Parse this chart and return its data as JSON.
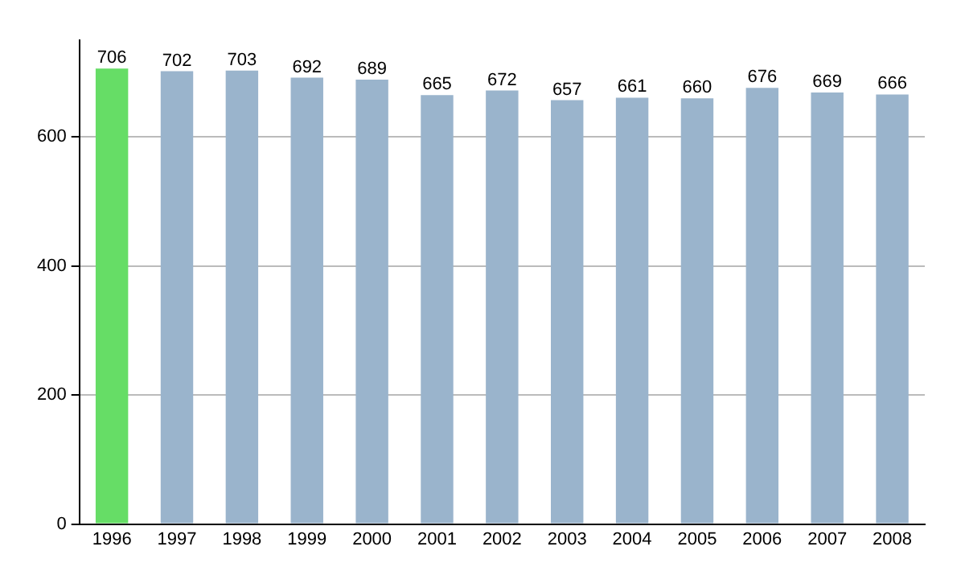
{
  "chart_data": {
    "type": "bar",
    "categories": [
      "1996",
      "1997",
      "1998",
      "1999",
      "2000",
      "2001",
      "2002",
      "2003",
      "2004",
      "2005",
      "2006",
      "2007",
      "2008"
    ],
    "values": [
      706,
      702,
      703,
      692,
      689,
      665,
      672,
      657,
      661,
      660,
      676,
      669,
      666
    ],
    "colors": [
      "#66dd66",
      "#9ab4cc",
      "#9ab4cc",
      "#9ab4cc",
      "#9ab4cc",
      "#9ab4cc",
      "#9ab4cc",
      "#9ab4cc",
      "#9ab4cc",
      "#9ab4cc",
      "#9ab4cc",
      "#9ab4cc",
      "#9ab4cc"
    ],
    "ylim": [
      0,
      750
    ],
    "yticks": [
      0,
      200,
      400,
      600
    ],
    "grid": "y",
    "data_labels": true,
    "legend": false
  }
}
